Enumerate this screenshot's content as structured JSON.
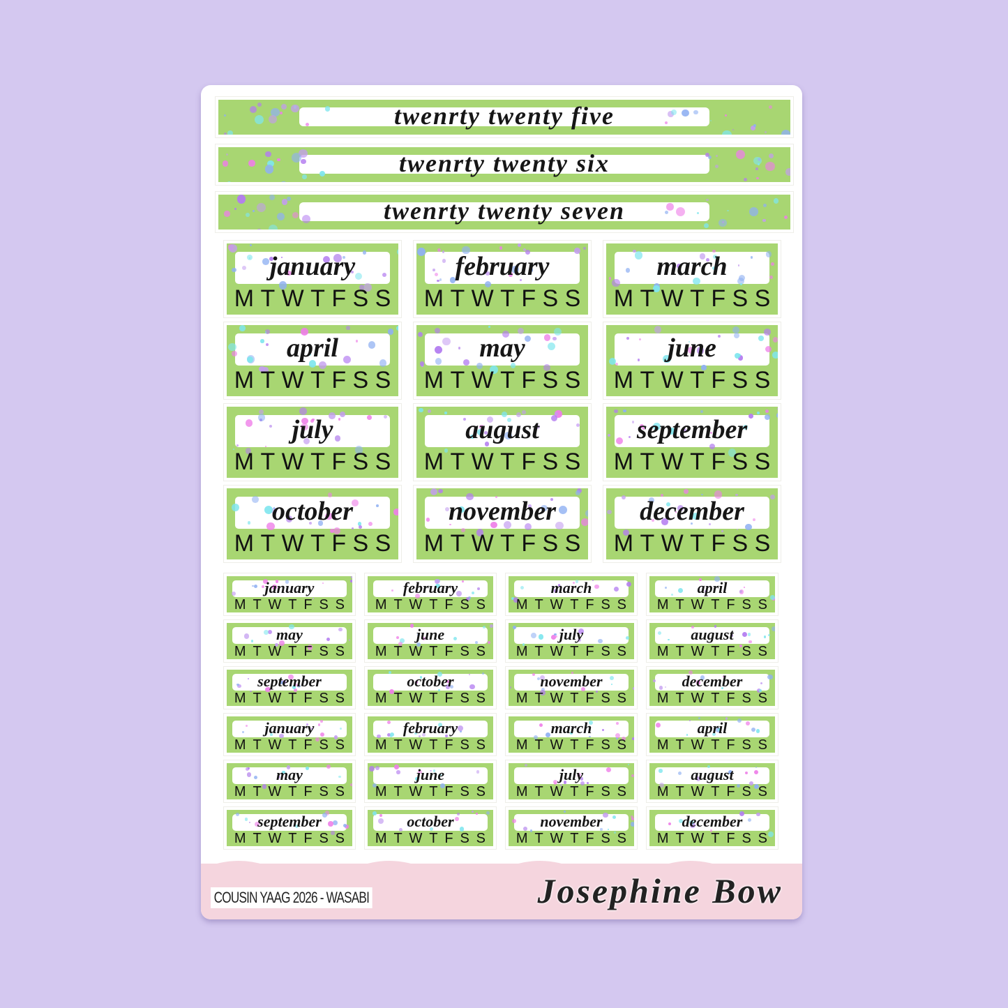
{
  "colors": {
    "background": "#d4c8f0",
    "sticker_green": "#a8d672",
    "footer_pink": "#f5d5de",
    "dot_colors": [
      "#ee7ee8",
      "#c39cf0",
      "#7fe6ee",
      "#8fb0f2",
      "#b37cf0"
    ]
  },
  "banners": [
    "twenrty twenty five",
    "twenrty twenty six",
    "twenrty twenty seven"
  ],
  "weekdays": [
    "M",
    "T",
    "W",
    "T",
    "F",
    "S",
    "S"
  ],
  "large_labels": [
    "january",
    "february",
    "march",
    "april",
    "may",
    "june",
    "july",
    "august",
    "september",
    "october",
    "november",
    "december"
  ],
  "small_labels": [
    "january",
    "february",
    "march",
    "april",
    "may",
    "june",
    "july",
    "august",
    "september",
    "october",
    "november",
    "december",
    "january",
    "february",
    "march",
    "april",
    "may",
    "june",
    "july",
    "august",
    "september",
    "october",
    "november",
    "december"
  ],
  "footer": {
    "product_code": "COUSIN YAAG 2026 - WASABI",
    "brand": "Josephine Bow"
  }
}
